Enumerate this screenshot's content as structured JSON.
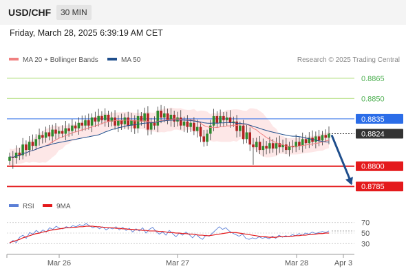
{
  "header": {
    "pair": "USD/CHF",
    "timeframe": "30 MIN"
  },
  "datetime": "Friday, March 28, 2025 6:39:19 AM CET",
  "legend": [
    {
      "label": "MA 20 + Bollinger Bands",
      "color": "#f08080"
    },
    {
      "label": "MA 50",
      "color": "#1f4e8c"
    }
  ],
  "credit": "Research © 2025 Trading Central",
  "chart_data": {
    "type": "candlestick",
    "ylim": [
      0.8778,
      0.8872
    ],
    "levels": [
      {
        "price": 0.8865,
        "label": "0.8865",
        "color": "#a6d96a",
        "kind": "target"
      },
      {
        "price": 0.885,
        "label": "0.8850",
        "color": "#a6d96a",
        "kind": "target"
      },
      {
        "price": 0.8835,
        "label": "0.8835",
        "color": "#2b6de8",
        "kind": "pivot"
      },
      {
        "price": 0.8824,
        "label": "0.8824",
        "color": "#333333",
        "kind": "last"
      },
      {
        "price": 0.88,
        "label": "0.8800",
        "color": "#e41a1c",
        "kind": "support"
      },
      {
        "price": 0.8785,
        "label": "0.8785",
        "color": "#e41a1c",
        "kind": "support"
      }
    ],
    "x_labels": [
      "Mar 26",
      "Mar 27",
      "Mar 28",
      "Apr 3"
    ],
    "closes": [
      0.8807,
      0.8806,
      0.881,
      0.8808,
      0.8816,
      0.8812,
      0.8818,
      0.8815,
      0.882,
      0.8823,
      0.8821,
      0.8825,
      0.8822,
      0.8827,
      0.8824,
      0.8826,
      0.8824,
      0.8828,
      0.8826,
      0.883,
      0.8828,
      0.8832,
      0.883,
      0.8834,
      0.883,
      0.8836,
      0.8833,
      0.8837,
      0.8834,
      0.8838,
      0.8833,
      0.8836,
      0.883,
      0.8834,
      0.8831,
      0.8836,
      0.883,
      0.8834,
      0.8828,
      0.8837,
      0.8833,
      0.8839,
      0.8827,
      0.8832,
      0.883,
      0.8841,
      0.8836,
      0.8839,
      0.8834,
      0.8838,
      0.8833,
      0.8836,
      0.883,
      0.8833,
      0.8829,
      0.8832,
      0.8826,
      0.8829,
      0.8822,
      0.8818,
      0.8824,
      0.883,
      0.8837,
      0.8832,
      0.8837,
      0.8834,
      0.8836,
      0.8832,
      0.8833,
      0.8826,
      0.883,
      0.882,
      0.8825,
      0.8816,
      0.8814,
      0.8818,
      0.8812,
      0.8815,
      0.8813,
      0.8817,
      0.8813,
      0.8817,
      0.8814,
      0.8816,
      0.8812,
      0.8815,
      0.8814,
      0.8818,
      0.8815,
      0.882,
      0.8817,
      0.8821,
      0.8818,
      0.8822,
      0.8819,
      0.8823,
      0.8821,
      0.8824
    ],
    "rsi": {
      "name": "RSI",
      "color": "#5b7fd6",
      "ma_name": "9MA",
      "ma_color": "#e41a1c",
      "ticks": [
        70,
        50,
        30
      ],
      "values": [
        30,
        36,
        32,
        42,
        46,
        40,
        51,
        48,
        55,
        50,
        56,
        52,
        60,
        57,
        63,
        59,
        58,
        62,
        60,
        64,
        62,
        66,
        64,
        68,
        64,
        60,
        63,
        58,
        62,
        56,
        60,
        58,
        62,
        56,
        61,
        55,
        59,
        52,
        58,
        54,
        60,
        50,
        57,
        61,
        53,
        48,
        52,
        46,
        55,
        49,
        43,
        50,
        46,
        52,
        47,
        41,
        48,
        42,
        38,
        46,
        44,
        50,
        56,
        62,
        57,
        60,
        54,
        50,
        47,
        44,
        48,
        40,
        38,
        41,
        39,
        43,
        40,
        42,
        39,
        44,
        40,
        46,
        42,
        45,
        43,
        47,
        45,
        49,
        46,
        50,
        48,
        52,
        49,
        51,
        53,
        51,
        54
      ],
      "ma": [
        32,
        34,
        36,
        38,
        41,
        43,
        45,
        47,
        49,
        50,
        52,
        53,
        55,
        56,
        57,
        58,
        59,
        60,
        60,
        61,
        61,
        62,
        62,
        63,
        63,
        63,
        62,
        62,
        61,
        61,
        60,
        60,
        59,
        59,
        58,
        58,
        57,
        57,
        56,
        56,
        55,
        55,
        54,
        54,
        54,
        53,
        53,
        52,
        51,
        51,
        50,
        50,
        49,
        49,
        48,
        48,
        47,
        46,
        46,
        45,
        45,
        46,
        47,
        48,
        49,
        50,
        51,
        51,
        51,
        50,
        49,
        48,
        47,
        46,
        45,
        44,
        43,
        43,
        42,
        42,
        42,
        43,
        43,
        43,
        44,
        44,
        45,
        45,
        46,
        46,
        47,
        47,
        48,
        49,
        49,
        50,
        50
      ]
    }
  }
}
